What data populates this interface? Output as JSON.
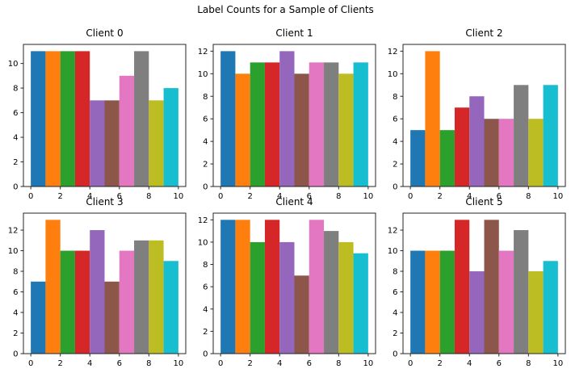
{
  "figure": {
    "title": "Label Counts for a Sample of Clients"
  },
  "colors": [
    "#1f77b4",
    "#ff7f0e",
    "#2ca02c",
    "#d62728",
    "#9467bd",
    "#8c564b",
    "#e377c2",
    "#7f7f7f",
    "#bcbd22",
    "#17becf"
  ],
  "chart_data": [
    {
      "type": "bar",
      "title": "Client 0",
      "categories": [
        0,
        1,
        2,
        3,
        4,
        5,
        6,
        7,
        8,
        9
      ],
      "values": [
        11,
        11,
        11,
        11,
        7,
        7,
        9,
        11,
        7,
        8
      ],
      "xlabel": "",
      "ylabel": "",
      "xlim": [
        -0.5,
        10.5
      ],
      "ylim": [
        0,
        11.55
      ],
      "xticks": [
        0,
        2,
        4,
        6,
        8,
        10
      ],
      "yticks": [
        0,
        2,
        4,
        6,
        8,
        10
      ],
      "bar_width": 1,
      "grid": false,
      "legend": "none"
    },
    {
      "type": "bar",
      "title": "Client 1",
      "categories": [
        0,
        1,
        2,
        3,
        4,
        5,
        6,
        7,
        8,
        9
      ],
      "values": [
        12,
        10,
        11,
        11,
        12,
        10,
        11,
        11,
        10,
        11
      ],
      "xlabel": "",
      "ylabel": "",
      "xlim": [
        -0.5,
        10.5
      ],
      "ylim": [
        0,
        12.6
      ],
      "xticks": [
        0,
        2,
        4,
        6,
        8,
        10
      ],
      "yticks": [
        0,
        2,
        4,
        6,
        8,
        10,
        12
      ],
      "bar_width": 1,
      "grid": false,
      "legend": "none"
    },
    {
      "type": "bar",
      "title": "Client 2",
      "categories": [
        0,
        1,
        2,
        3,
        4,
        5,
        6,
        7,
        8,
        9
      ],
      "values": [
        5,
        12,
        5,
        7,
        8,
        6,
        6,
        9,
        6,
        9
      ],
      "xlabel": "",
      "ylabel": "",
      "xlim": [
        -0.5,
        10.5
      ],
      "ylim": [
        0,
        12.6
      ],
      "xticks": [
        0,
        2,
        4,
        6,
        8,
        10
      ],
      "yticks": [
        0,
        2,
        4,
        6,
        8,
        10,
        12
      ],
      "bar_width": 1,
      "grid": false,
      "legend": "none"
    },
    {
      "type": "bar",
      "title": "Client 3",
      "categories": [
        0,
        1,
        2,
        3,
        4,
        5,
        6,
        7,
        8,
        9
      ],
      "values": [
        7,
        13,
        10,
        10,
        12,
        7,
        10,
        11,
        11,
        9
      ],
      "xlabel": "",
      "ylabel": "",
      "xlim": [
        -0.5,
        10.5
      ],
      "ylim": [
        0,
        13.65
      ],
      "xticks": [
        0,
        2,
        4,
        6,
        8,
        10
      ],
      "yticks": [
        0,
        2,
        4,
        6,
        8,
        10,
        12
      ],
      "bar_width": 1,
      "grid": false,
      "legend": "none"
    },
    {
      "type": "bar",
      "title": "Client 4",
      "categories": [
        0,
        1,
        2,
        3,
        4,
        5,
        6,
        7,
        8,
        9
      ],
      "values": [
        12,
        12,
        10,
        12,
        10,
        7,
        12,
        11,
        10,
        9
      ],
      "xlabel": "",
      "ylabel": "",
      "xlim": [
        -0.5,
        10.5
      ],
      "ylim": [
        0,
        12.6
      ],
      "xticks": [
        0,
        2,
        4,
        6,
        8,
        10
      ],
      "yticks": [
        0,
        2,
        4,
        6,
        8,
        10,
        12
      ],
      "bar_width": 1,
      "grid": false,
      "legend": "none"
    },
    {
      "type": "bar",
      "title": "Client 5",
      "categories": [
        0,
        1,
        2,
        3,
        4,
        5,
        6,
        7,
        8,
        9
      ],
      "values": [
        10,
        10,
        10,
        13,
        8,
        13,
        10,
        12,
        8,
        9
      ],
      "xlabel": "",
      "ylabel": "",
      "xlim": [
        -0.5,
        10.5
      ],
      "ylim": [
        0,
        13.65
      ],
      "xticks": [
        0,
        2,
        4,
        6,
        8,
        10
      ],
      "yticks": [
        0,
        2,
        4,
        6,
        8,
        10,
        12
      ],
      "bar_width": 1,
      "grid": false,
      "legend": "none"
    }
  ]
}
